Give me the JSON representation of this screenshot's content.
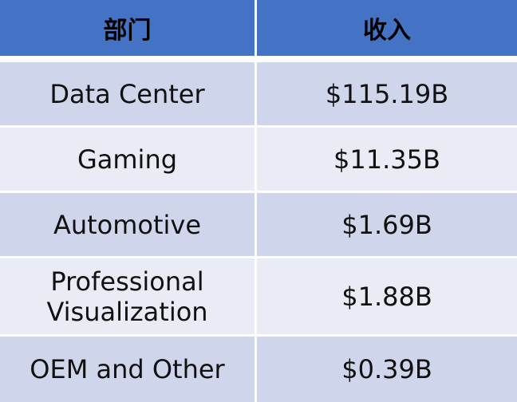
{
  "table": {
    "headers": [
      "部门",
      "收入"
    ],
    "rows": [
      {
        "segment": "Data Center",
        "revenue": "$115.19B"
      },
      {
        "segment": "Gaming",
        "revenue": "$11.35B"
      },
      {
        "segment": "Automotive",
        "revenue": "$1.69B"
      },
      {
        "segment": "Professional Visualization",
        "revenue": "$1.88B"
      },
      {
        "segment": "OEM and Other",
        "revenue": "$0.39B"
      }
    ]
  },
  "colors": {
    "header_bg": "#4472c4",
    "row_dark": "#cfd5ea",
    "row_light": "#e9ebf5"
  }
}
